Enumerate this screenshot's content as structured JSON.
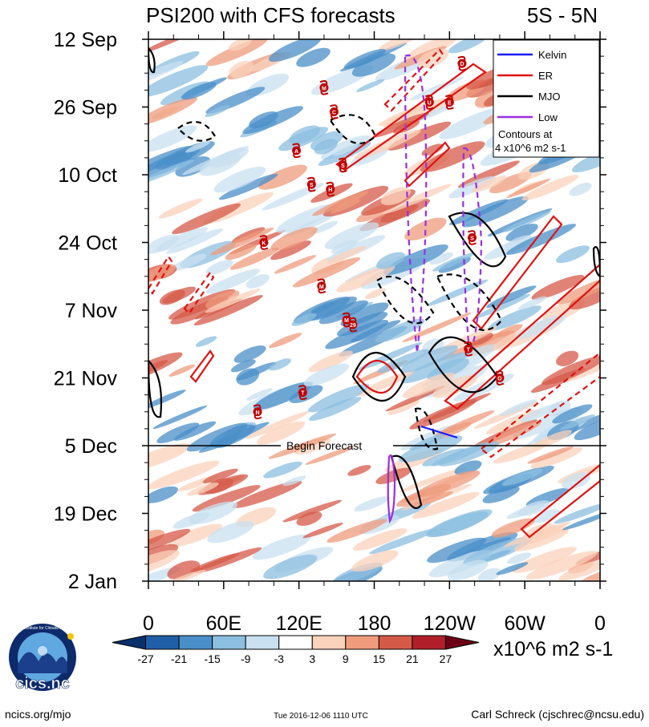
{
  "chart_data": {
    "type": "heatmap",
    "title_left": "PSI200 with CFS forecasts",
    "title_right": "5S - 5N",
    "y_ticks": [
      {
        "label": "12 Sep",
        "day": 0
      },
      {
        "label": "26 Sep",
        "day": 14
      },
      {
        "label": "10 Oct",
        "day": 28
      },
      {
        "label": "24 Oct",
        "day": 42
      },
      {
        "label": "7 Nov",
        "day": 56
      },
      {
        "label": "21 Nov",
        "day": 70
      },
      {
        "label": "5 Dec",
        "day": 84
      },
      {
        "label": "19 Dec",
        "day": 98
      },
      {
        "label": "2 Jan",
        "day": 112
      }
    ],
    "x_ticks": [
      {
        "label": "0",
        "lon": 0
      },
      {
        "label": "60E",
        "lon": 60
      },
      {
        "label": "120E",
        "lon": 120
      },
      {
        "label": "180",
        "lon": 180
      },
      {
        "label": "120W",
        "lon": 240
      },
      {
        "label": "60W",
        "lon": 300
      },
      {
        "label": "0",
        "lon": 360
      }
    ],
    "xlim": [
      0,
      360
    ],
    "ylim_days": [
      0,
      112
    ],
    "forecast_day": 84,
    "forecast_label": "Begin Forecast",
    "legend": {
      "entries": [
        {
          "label": "Kelvin",
          "color": "#1a1aff"
        },
        {
          "label": "ER",
          "color": "#e01010"
        },
        {
          "label": "MJO",
          "color": "#000000"
        },
        {
          "label": "Low",
          "color": "#9a2ee0"
        }
      ],
      "note": "Contours at",
      "note2": "4 x10^6 m2 s-1"
    },
    "colorbar": {
      "levels": [
        "-27",
        "-21",
        "-15",
        "-9",
        "-3",
        "3",
        "9",
        "15",
        "21",
        "27"
      ],
      "colors": [
        "#08306b",
        "#1f5fa8",
        "#4a8fc8",
        "#8cbfe0",
        "#c8e0f0",
        "#ffffff",
        "#fbd2bb",
        "#ef9b7c",
        "#d65a48",
        "#b01f2a",
        "#6b0016"
      ],
      "units": "x10^6 m2 s-1"
    },
    "cyclones": [
      {
        "label": "D",
        "lon": 250,
        "day": 5
      },
      {
        "label": "M",
        "lon": 140,
        "day": 10
      },
      {
        "label": "U",
        "lon": 224,
        "day": 13
      },
      {
        "label": "E",
        "lon": 240,
        "day": 13
      },
      {
        "label": "C",
        "lon": 148,
        "day": 15
      },
      {
        "label": "A",
        "lon": 118,
        "day": 23
      },
      {
        "label": "S",
        "lon": 155,
        "day": 26
      },
      {
        "label": "S",
        "lon": 130,
        "day": 30
      },
      {
        "label": "H",
        "lon": 145,
        "day": 31
      },
      {
        "label": "S",
        "lon": 258,
        "day": 41
      },
      {
        "label": "K",
        "lon": 92,
        "day": 42
      },
      {
        "label": "M",
        "lon": 138,
        "day": 51
      },
      {
        "label": "M",
        "lon": 158,
        "day": 58
      },
      {
        "label": "29",
        "lon": 163,
        "day": 59
      },
      {
        "label": "T",
        "lon": 255,
        "day": 64
      },
      {
        "label": "O",
        "lon": 280,
        "day": 70
      },
      {
        "label": "T",
        "lon": 123,
        "day": 73
      },
      {
        "label": "N",
        "lon": 87,
        "day": 77
      }
    ]
  },
  "footer": {
    "left": "ncics.org/mjo",
    "center": "Tue 2016-12-06 1110 UTC",
    "right": "Carl Schreck (cjschrec@ncsu.edu)"
  },
  "logo": {
    "text": "cics.nc",
    "ring_text": "Cooperative Institute for Climate and Satellites"
  }
}
